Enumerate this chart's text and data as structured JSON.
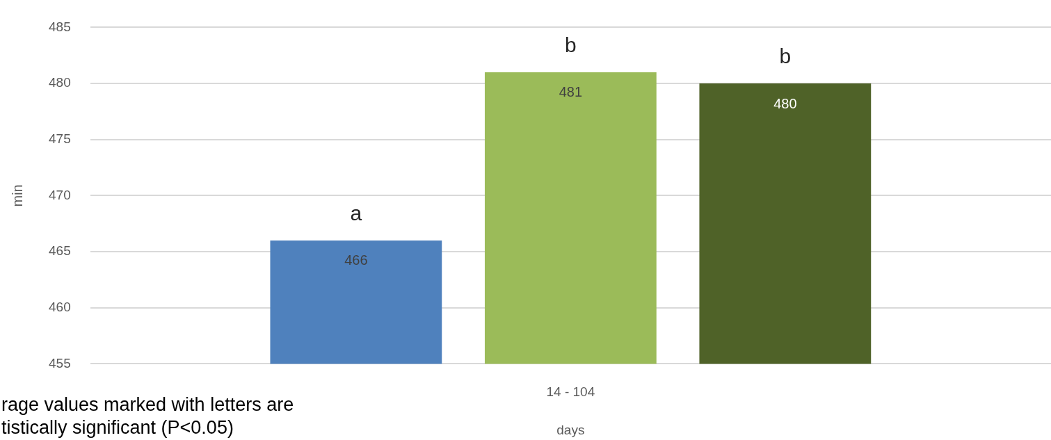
{
  "chart_data": {
    "type": "bar",
    "ylabel": "min",
    "xlabel": "days",
    "categories": [
      "14 - 104"
    ],
    "series": [
      {
        "color": "#4f81bd",
        "values": [
          466
        ]
      },
      {
        "color": "#9bbb59",
        "values": [
          481
        ]
      },
      {
        "color": "#4f6228",
        "values": [
          480
        ]
      }
    ],
    "ylim": [
      455,
      485
    ],
    "yticks": [
      455,
      460,
      465,
      470,
      475,
      480,
      485
    ],
    "grid": "y",
    "legend": false,
    "data_labels": true,
    "annotations": [
      {
        "text": "a",
        "y": 466
      },
      {
        "text": "b",
        "y": 481
      },
      {
        "text": "b",
        "y": 480
      },
      "rage values marked with letters are",
      "tistically significant (P<0.05)"
    ]
  }
}
